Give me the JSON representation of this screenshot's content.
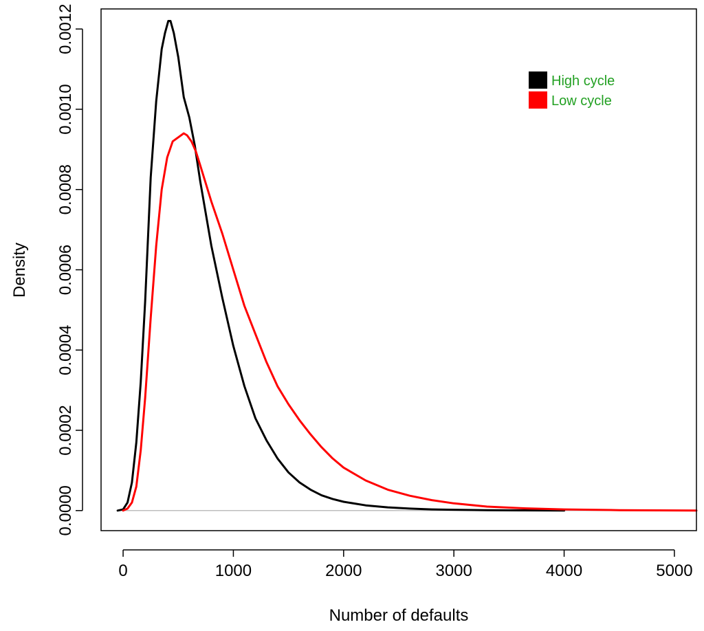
{
  "chart_data": {
    "type": "line",
    "title": "",
    "xlabel": "Number of defaults",
    "ylabel": "Density",
    "xlim": [
      -200,
      5200
    ],
    "ylim": [
      -5e-05,
      0.00125
    ],
    "xticks": [
      0,
      1000,
      2000,
      3000,
      4000,
      5000
    ],
    "xtick_labels": [
      "0",
      "1000",
      "2000",
      "3000",
      "4000",
      "5000"
    ],
    "yticks": [
      0.0,
      0.0002,
      0.0004,
      0.0006,
      0.0008,
      0.001,
      0.0012
    ],
    "ytick_labels": [
      "0.0000",
      "0.0002",
      "0.0004",
      "0.0006",
      "0.0008",
      "0.0010",
      "0.0012"
    ],
    "baseline": 0,
    "baseline_color": "#bebebe",
    "grid": false,
    "legend_position": "top-right",
    "legend_text_color": "#22a022",
    "series": [
      {
        "name": "High cycle",
        "color": "#000000",
        "x": [
          -50,
          0,
          40,
          80,
          120,
          160,
          200,
          250,
          300,
          350,
          380,
          410,
          430,
          460,
          500,
          550,
          600,
          650,
          700,
          800,
          900,
          1000,
          1100,
          1200,
          1300,
          1400,
          1500,
          1600,
          1700,
          1800,
          1900,
          2000,
          2200,
          2400,
          2600,
          2800,
          3000,
          3300,
          3600,
          4000
        ],
        "y": [
          0,
          3e-06,
          2e-05,
          7e-05,
          0.00017,
          0.00032,
          0.00052,
          0.00083,
          0.00102,
          0.00115,
          0.00119,
          0.00122,
          0.00122,
          0.00119,
          0.00113,
          0.00103,
          0.00098,
          0.00091,
          0.00082,
          0.00066,
          0.00053,
          0.00041,
          0.00031,
          0.00023,
          0.000175,
          0.00013,
          9.5e-05,
          7e-05,
          5.2e-05,
          3.8e-05,
          2.9e-05,
          2.2e-05,
          1.3e-05,
          8e-06,
          5e-06,
          3e-06,
          2e-06,
          1e-06,
          5e-07,
          2e-07
        ]
      },
      {
        "name": "Low cycle",
        "color": "#ff0000",
        "x": [
          0,
          40,
          80,
          120,
          160,
          200,
          250,
          300,
          350,
          400,
          450,
          500,
          550,
          580,
          620,
          660,
          700,
          800,
          900,
          1000,
          1100,
          1200,
          1300,
          1400,
          1500,
          1600,
          1700,
          1800,
          1900,
          2000,
          2200,
          2400,
          2600,
          2800,
          3000,
          3300,
          3600,
          4000,
          4500,
          5200
        ],
        "y": [
          0,
          5e-06,
          2e-05,
          6e-05,
          0.00015,
          0.00028,
          0.00048,
          0.00066,
          0.0008,
          0.00088,
          0.00092,
          0.00093,
          0.00094,
          0.000935,
          0.00092,
          0.000895,
          0.00086,
          0.00077,
          0.00069,
          0.0006,
          0.00051,
          0.00044,
          0.00037,
          0.00031,
          0.000265,
          0.000225,
          0.00019,
          0.000158,
          0.00013,
          0.000107,
          7.5e-05,
          5.2e-05,
          3.7e-05,
          2.6e-05,
          1.8e-05,
          1e-05,
          6e-06,
          3e-06,
          1e-06,
          0.0
        ]
      }
    ]
  }
}
